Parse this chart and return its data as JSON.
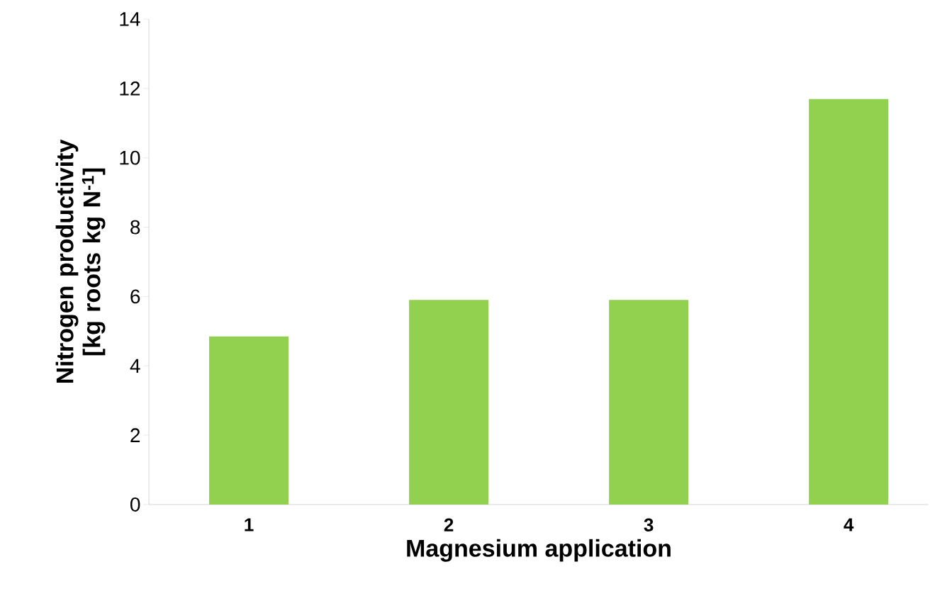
{
  "chart_data": {
    "type": "bar",
    "xlabel": "Magnesium application",
    "ylabel": "Nitrogen productivity [kg roots kg N$^{-1}$]",
    "categories": [
      "1",
      "2",
      "3",
      "4"
    ],
    "values": [
      4.85,
      5.9,
      5.9,
      11.7
    ],
    "color": "#92d050",
    "ylim": [
      0,
      14
    ],
    "yticks": [
      0,
      2,
      4,
      6,
      8,
      10,
      12,
      14
    ]
  }
}
